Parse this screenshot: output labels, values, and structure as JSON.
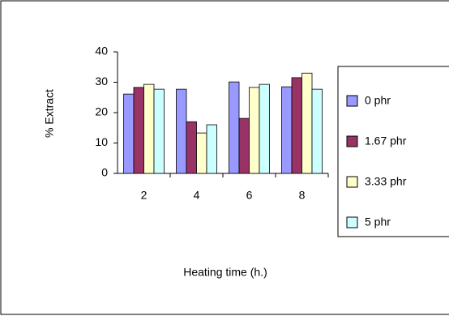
{
  "chart_data": {
    "type": "bar",
    "categories": [
      "2",
      "4",
      "6",
      "8"
    ],
    "series": [
      {
        "name": "0 phr",
        "color": "#9999ff",
        "values": [
          26.1,
          27.7,
          30.1,
          28.5
        ]
      },
      {
        "name": "1.67 phr",
        "color": "#993366",
        "values": [
          28.3,
          17,
          18.1,
          31.5
        ]
      },
      {
        "name": "3.33 phr",
        "color": "#ffffcc",
        "values": [
          29.3,
          13.3,
          28.3,
          33
        ]
      },
      {
        "name": "5 phr",
        "color": "#ccffff",
        "values": [
          27.7,
          16,
          29.3,
          27.7
        ]
      }
    ],
    "ylim": [
      0,
      40
    ],
    "yticks": [
      0,
      10,
      20,
      30,
      40
    ],
    "y_label": "% Extract",
    "x_label": "Heating time (h.)",
    "legend": "right",
    "grid": false
  }
}
